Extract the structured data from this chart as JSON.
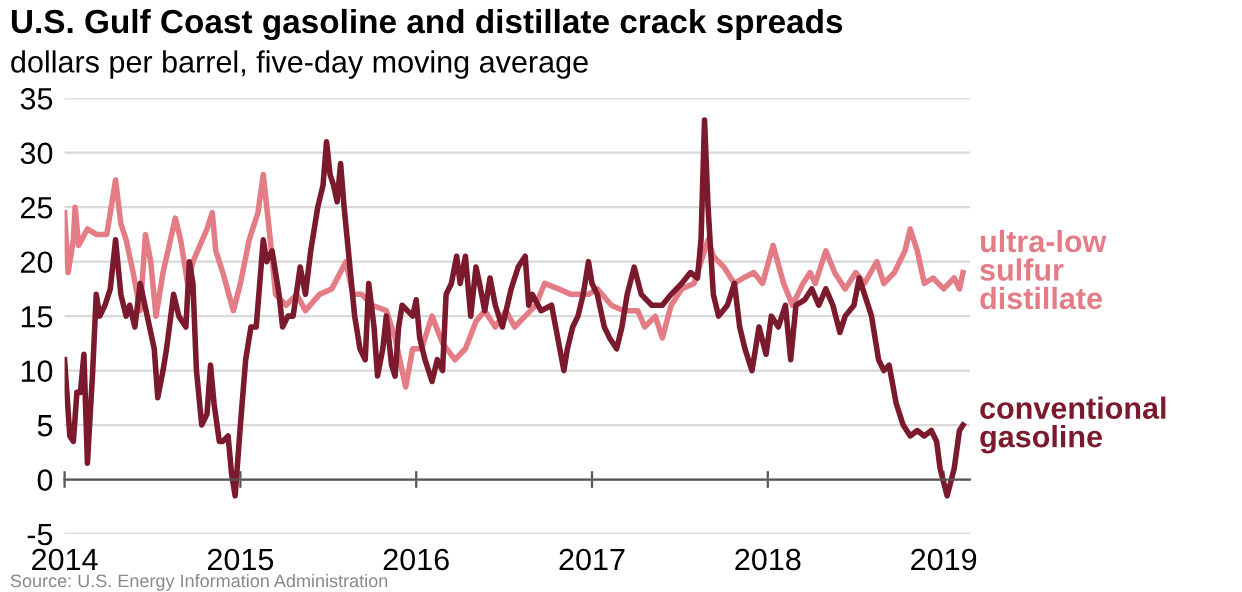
{
  "chart_data": {
    "type": "line",
    "title": "U.S. Gulf Coast gasoline and distillate crack spreads",
    "subtitle": "dollars per barrel, five-day moving average",
    "annotations": [
      "Source: U.S. Energy Information Administration"
    ],
    "series": [
      {
        "name": "ultra-low\nsulfur\ndistillate",
        "color": "#e47c86",
        "x": [
          2014.0,
          2014.02,
          2014.05,
          2014.06,
          2014.08,
          2014.13,
          2014.18,
          2014.24,
          2014.29,
          2014.32,
          2014.35,
          2014.39,
          2014.43,
          2014.46,
          2014.49,
          2014.52,
          2014.56,
          2014.63,
          2014.66,
          2014.7,
          2014.73,
          2014.81,
          2014.84,
          2014.86,
          2014.9,
          2014.96,
          2015.0,
          2015.05,
          2015.1,
          2015.13,
          2015.17,
          2015.2,
          2015.26,
          2015.32,
          2015.37,
          2015.45,
          2015.52,
          2015.6,
          2015.64,
          2015.69,
          2015.75,
          2015.83,
          2015.88,
          2015.94,
          2015.98,
          2016.03,
          2016.09,
          2016.15,
          2016.22,
          2016.28,
          2016.34,
          2016.39,
          2016.45,
          2016.51,
          2016.56,
          2016.62,
          2016.68,
          2016.73,
          2016.81,
          2016.88,
          2016.98,
          2017.03,
          2017.11,
          2017.18,
          2017.26,
          2017.3,
          2017.36,
          2017.4,
          2017.45,
          2017.51,
          2017.58,
          2017.66,
          2017.69,
          2017.75,
          2017.81,
          2017.86,
          2017.92,
          2017.97,
          2018.03,
          2018.09,
          2018.14,
          2018.2,
          2018.24,
          2018.27,
          2018.33,
          2018.38,
          2018.44,
          2018.5,
          2018.55,
          2018.62,
          2018.66,
          2018.72,
          2018.78,
          2018.81,
          2018.85,
          2018.89,
          2018.94,
          2019.0,
          2019.06,
          2019.09,
          2019.11
        ],
        "values": [
          24.5,
          19,
          22,
          25,
          21.5,
          23,
          22.5,
          22.5,
          27.5,
          23.5,
          22,
          19,
          15.5,
          22.5,
          20,
          15,
          19,
          24,
          22,
          18,
          20,
          23,
          24.5,
          21,
          19,
          15.5,
          18,
          22,
          24.5,
          28,
          22,
          17,
          16,
          17,
          15.5,
          17,
          17.5,
          20,
          17,
          17,
          16,
          15.5,
          13,
          8.5,
          12,
          12,
          15,
          12.5,
          11,
          12,
          14.5,
          15.5,
          14,
          15.5,
          14,
          15,
          16,
          18,
          17.5,
          17,
          17,
          17.5,
          16,
          15.5,
          15.5,
          14,
          15,
          13,
          16,
          17.5,
          18,
          22,
          20.5,
          19.5,
          18,
          18.5,
          19,
          18,
          21.5,
          18,
          16,
          18,
          19,
          18,
          21,
          19,
          17.5,
          19,
          18,
          20,
          18,
          19,
          21,
          23,
          21,
          18,
          18.5,
          17.5,
          18.5,
          17.5,
          19
        ]
      },
      {
        "name": "conventional\ngasoline",
        "color": "#7a1a2c",
        "x": [
          2014.0,
          2014.03,
          2014.05,
          2014.07,
          2014.09,
          2014.11,
          2014.13,
          2014.16,
          2014.18,
          2014.2,
          2014.23,
          2014.26,
          2014.29,
          2014.32,
          2014.35,
          2014.37,
          2014.4,
          2014.43,
          2014.47,
          2014.51,
          2014.53,
          2014.56,
          2014.58,
          2014.62,
          2014.65,
          2014.69,
          2014.71,
          2014.73,
          2014.75,
          2014.78,
          2014.81,
          2014.83,
          2014.85,
          2014.88,
          2014.9,
          2014.93,
          2014.95,
          2014.97,
          2015.0,
          2015.03,
          2015.06,
          2015.09,
          2015.13,
          2015.15,
          2015.18,
          2015.22,
          2015.24,
          2015.27,
          2015.3,
          2015.34,
          2015.37,
          2015.4,
          2015.44,
          2015.47,
          2015.49,
          2015.51,
          2015.53,
          2015.55,
          2015.57,
          2015.59,
          2015.62,
          2015.65,
          2015.68,
          2015.71,
          2015.73,
          2015.76,
          2015.78,
          2015.81,
          2015.83,
          2015.86,
          2015.88,
          2015.9,
          2015.92,
          2015.95,
          2015.98,
          2016.0,
          2016.02,
          2016.05,
          2016.09,
          2016.12,
          2016.15,
          2016.17,
          2016.2,
          2016.23,
          2016.25,
          2016.28,
          2016.31,
          2016.34,
          2016.36,
          2016.39,
          2016.42,
          2016.45,
          2016.49,
          2016.54,
          2016.58,
          2016.62,
          2016.64,
          2016.66,
          2016.71,
          2016.77,
          2016.84,
          2016.86,
          2016.89,
          2016.92,
          2016.95,
          2016.98,
          2017.0,
          2017.03,
          2017.07,
          2017.1,
          2017.14,
          2017.17,
          2017.2,
          2017.24,
          2017.28,
          2017.34,
          2017.4,
          2017.45,
          2017.51,
          2017.56,
          2017.6,
          2017.62,
          2017.64,
          2017.66,
          2017.69,
          2017.72,
          2017.77,
          2017.81,
          2017.84,
          2017.87,
          2017.91,
          2017.95,
          2017.99,
          2018.02,
          2018.06,
          2018.1,
          2018.13,
          2018.16,
          2018.21,
          2018.25,
          2018.29,
          2018.33,
          2018.37,
          2018.41,
          2018.44,
          2018.49,
          2018.52,
          2018.55,
          2018.59,
          2018.63,
          2018.66,
          2018.69,
          2018.73,
          2018.77,
          2018.81,
          2018.85,
          2018.89,
          2018.93,
          2018.96,
          2018.98,
          2019.02,
          2019.06,
          2019.09,
          2019.11
        ],
        "values": [
          11,
          4,
          3.5,
          8,
          8,
          11.5,
          1.5,
          10,
          17,
          15,
          16,
          17.5,
          22,
          17,
          15,
          16,
          14,
          18,
          15,
          12,
          7.5,
          10,
          12,
          17,
          15,
          14,
          20,
          18,
          10,
          5,
          6,
          10.5,
          7,
          3.5,
          3.5,
          4,
          0.5,
          -1.5,
          5,
          11,
          14,
          14,
          22,
          20,
          21,
          17,
          14,
          15,
          15,
          19.5,
          17,
          21,
          25,
          27,
          31,
          28,
          27,
          25.5,
          29,
          25,
          20,
          15,
          12,
          11,
          18,
          14,
          9.5,
          12,
          15,
          10.5,
          9.5,
          14,
          16,
          15.5,
          15,
          16.5,
          13,
          11,
          9,
          11,
          10,
          17,
          18,
          20.5,
          18,
          20.5,
          15,
          19.5,
          18,
          15.5,
          18.5,
          16,
          14,
          17.5,
          19.5,
          20.5,
          16,
          17,
          15.5,
          16,
          10,
          12,
          14,
          15,
          17,
          20,
          18,
          17,
          14,
          13,
          12,
          14,
          17,
          19.5,
          17,
          16,
          16,
          17,
          18,
          19,
          18.5,
          22,
          33,
          25,
          17,
          15,
          16,
          18,
          14,
          12,
          10,
          14,
          11.5,
          15,
          14,
          16,
          11,
          16,
          16.5,
          17.5,
          16,
          17.5,
          16,
          13.5,
          15,
          16,
          18.5,
          17,
          15,
          11,
          10,
          10.5,
          7,
          5,
          4,
          4.5,
          4,
          4.5,
          3.5,
          1,
          -1.5,
          1,
          4.5,
          5
        ]
      }
    ],
    "xlim": [
      2014,
      2019.15
    ],
    "xticks": [
      2014,
      2015,
      2016,
      2017,
      2018,
      2019
    ],
    "ylim": [
      -5,
      35
    ],
    "yticks": [
      -5,
      0,
      5,
      10,
      15,
      20,
      25,
      30,
      35
    ],
    "grid": "y",
    "legend": false,
    "marker": "none",
    "line_style": "solid"
  }
}
